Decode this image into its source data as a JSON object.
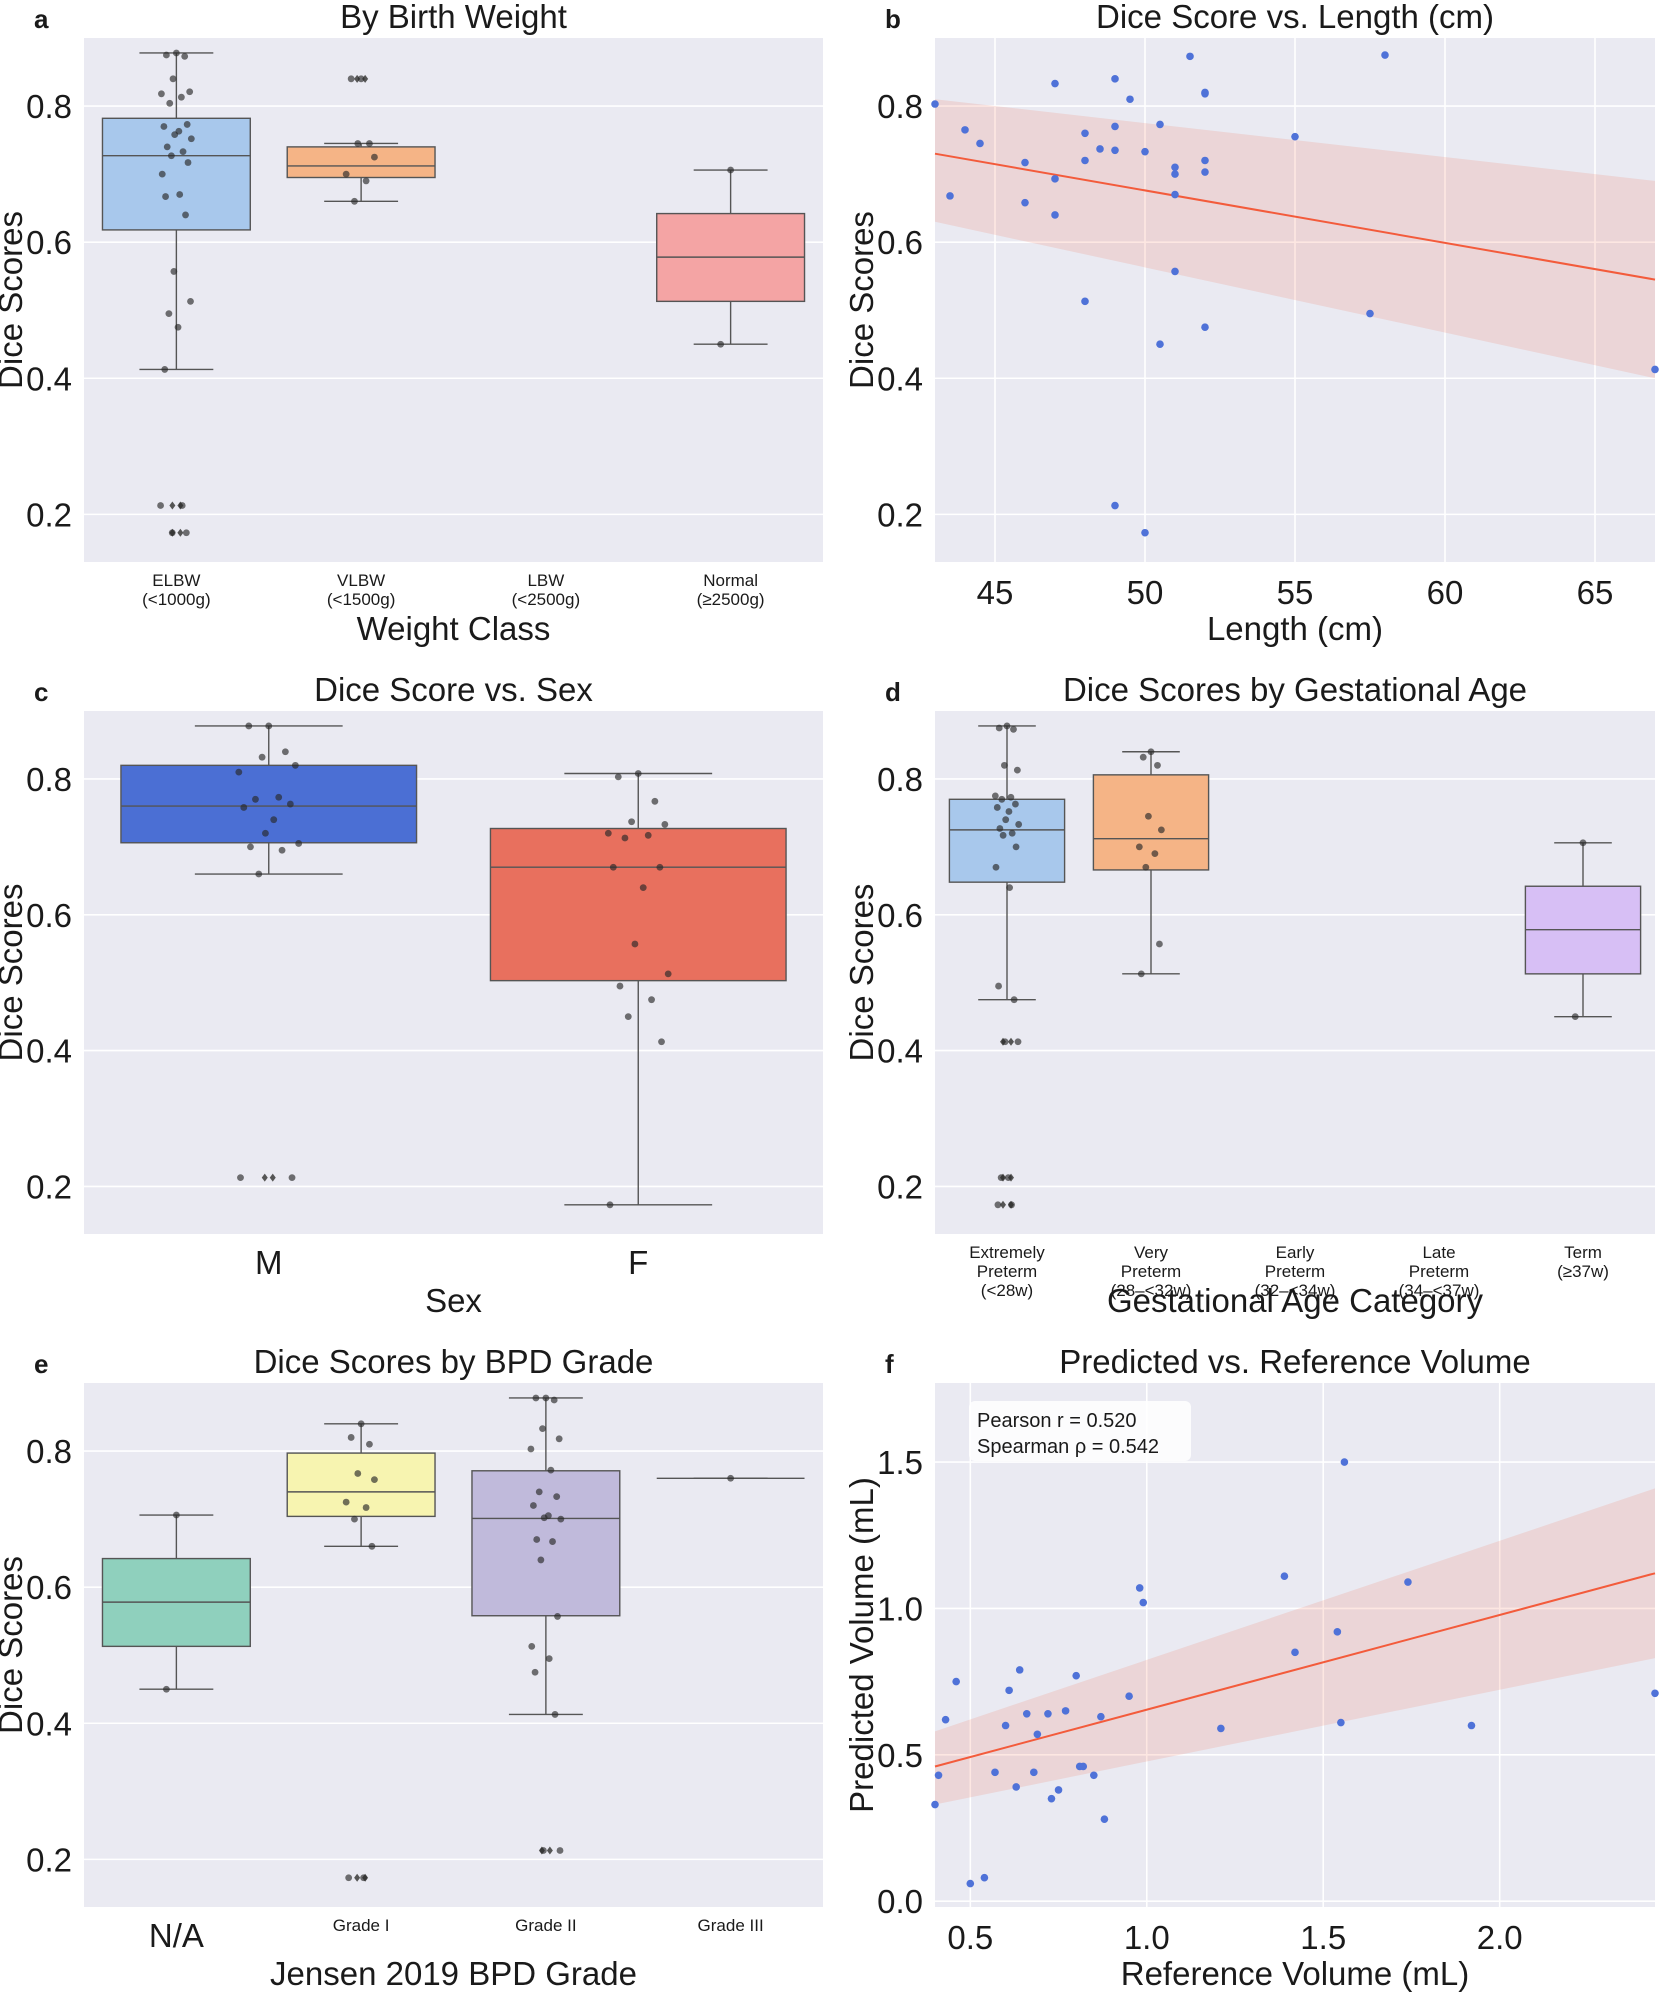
{
  "chart_data": [
    {
      "panel_label": "a",
      "type": "box",
      "title": "By Birth Weight",
      "xlabel": "Weight Class",
      "ylabel": "Dice Scores",
      "categories": [
        "ELBW\n(<1000g)",
        "VLBW\n(<1500g)",
        "LBW\n(<2500g)",
        "Normal\n(≥2500g)"
      ],
      "boxes": [
        {
          "q1": 0.618,
          "median": 0.727,
          "q3": 0.782,
          "whisker_low": 0.413,
          "whisker_high": 0.878,
          "outliers": [
            0.213,
            0.213,
            0.173,
            0.173
          ],
          "color": "#a8c8ec"
        },
        {
          "q1": 0.695,
          "median": 0.712,
          "q3": 0.74,
          "whisker_low": 0.66,
          "whisker_high": 0.745,
          "outliers": [
            0.84,
            0.84
          ],
          "color": "#f5b486"
        },
        null,
        {
          "q1": 0.513,
          "median": 0.578,
          "q3": 0.642,
          "whisker_low": 0.45,
          "whisker_high": 0.706,
          "outliers": [],
          "color": "#f4a4a4"
        }
      ],
      "points": [
        [
          [
            0.878,
            0.875,
            0.873,
            0.84,
            0.821,
            0.818,
            0.813,
            0.804,
            0.773,
            0.77,
            0.763,
            0.758,
            0.752,
            0.74,
            0.733,
            0.727,
            0.717,
            0.7,
            0.67,
            0.667,
            0.64,
            0.557,
            0.513,
            0.495,
            0.475,
            0.413,
            0.213,
            0.213,
            0.173,
            0.173
          ]
        ],
        [
          [
            0.84,
            0.84,
            0.745,
            0.745,
            0.725,
            0.7,
            0.69,
            0.66
          ]
        ],
        [],
        [
          [
            0.706,
            0.45
          ]
        ]
      ],
      "ylim": [
        0.13,
        0.9
      ],
      "yticks": [
        0.2,
        0.4,
        0.6,
        0.8
      ]
    },
    {
      "panel_label": "b",
      "type": "scatter",
      "title": "Dice Score vs. Length (cm)",
      "xlabel": "Length (cm)",
      "ylabel": "Dice Scores",
      "x": [
        43,
        43.5,
        44,
        44.5,
        46,
        46,
        47,
        47,
        47,
        48,
        48,
        48,
        48.5,
        49,
        49,
        49,
        49,
        49.5,
        50,
        50,
        50.5,
        50.5,
        51,
        51,
        51,
        51,
        51.5,
        52,
        52,
        52,
        52,
        52,
        55,
        57.5,
        58,
        67
      ],
      "y": [
        0.803,
        0.668,
        0.765,
        0.745,
        0.717,
        0.658,
        0.833,
        0.693,
        0.64,
        0.76,
        0.72,
        0.513,
        0.737,
        0.77,
        0.213,
        0.84,
        0.735,
        0.81,
        0.733,
        0.173,
        0.773,
        0.45,
        0.71,
        0.7,
        0.67,
        0.557,
        0.873,
        0.82,
        0.818,
        0.72,
        0.703,
        0.475,
        0.755,
        0.495,
        0.875,
        0.413
      ],
      "regression": {
        "x": [
          43,
          67
        ],
        "y": [
          0.73,
          0.545
        ],
        "ci_low": [
          0.63,
          0.4
        ],
        "ci_high": [
          0.81,
          0.69
        ],
        "color": "#f35b3b"
      },
      "xlim": [
        43,
        67
      ],
      "ylim": [
        0.13,
        0.9
      ],
      "xticks": [
        45,
        50,
        55,
        60,
        65
      ],
      "yticks": [
        0.2,
        0.4,
        0.6,
        0.8
      ]
    },
    {
      "panel_label": "c",
      "type": "box",
      "title": "Dice Score vs. Sex",
      "xlabel": "Sex",
      "ylabel": "Dice Scores",
      "categories": [
        "M",
        "F"
      ],
      "boxes": [
        {
          "q1": 0.706,
          "median": 0.76,
          "q3": 0.82,
          "whisker_low": 0.66,
          "whisker_high": 0.878,
          "outliers": [
            0.213,
            0.213
          ],
          "color": "#4b6fd4"
        },
        {
          "q1": 0.503,
          "median": 0.67,
          "q3": 0.727,
          "whisker_low": 0.173,
          "whisker_high": 0.808,
          "outliers": [],
          "color": "#e8705e"
        }
      ],
      "points": [
        [
          [
            0.878,
            0.878,
            0.84,
            0.832,
            0.82,
            0.81,
            0.773,
            0.77,
            0.763,
            0.758,
            0.74,
            0.72,
            0.705,
            0.7,
            0.695,
            0.66,
            0.213,
            0.213
          ]
        ],
        [
          [
            0.808,
            0.803,
            0.767,
            0.737,
            0.733,
            0.72,
            0.717,
            0.713,
            0.67,
            0.67,
            0.64,
            0.557,
            0.513,
            0.495,
            0.475,
            0.45,
            0.413,
            0.173
          ]
        ]
      ],
      "ylim": [
        0.13,
        0.9
      ],
      "yticks": [
        0.2,
        0.4,
        0.6,
        0.8
      ]
    },
    {
      "panel_label": "d",
      "type": "box",
      "title": "Dice Scores by Gestational Age",
      "xlabel": "Gestational Age Category",
      "ylabel": "Dice Scores",
      "categories": [
        "Extremely\nPreterm\n(<28w)",
        "Very\nPreterm\n(28–<32w)",
        "Early\nPreterm\n(32–<34w)",
        "Late\nPreterm\n(34–<37w)",
        "Term\n(≥37w)"
      ],
      "boxes": [
        {
          "q1": 0.648,
          "median": 0.725,
          "q3": 0.77,
          "whisker_low": 0.475,
          "whisker_high": 0.878,
          "outliers": [
            0.413,
            0.413,
            0.213,
            0.213,
            0.173,
            0.173
          ],
          "color": "#a8c8ec"
        },
        {
          "q1": 0.666,
          "median": 0.712,
          "q3": 0.806,
          "whisker_low": 0.513,
          "whisker_high": 0.84,
          "outliers": [],
          "color": "#f5b486"
        },
        null,
        null,
        {
          "q1": 0.513,
          "median": 0.578,
          "q3": 0.642,
          "whisker_low": 0.45,
          "whisker_high": 0.706,
          "outliers": [],
          "color": "#d7bff5"
        }
      ],
      "points": [
        [
          [
            0.878,
            0.875,
            0.873,
            0.82,
            0.813,
            0.775,
            0.773,
            0.77,
            0.763,
            0.758,
            0.752,
            0.74,
            0.733,
            0.727,
            0.72,
            0.717,
            0.7,
            0.67,
            0.64,
            0.495,
            0.475,
            0.413,
            0.413,
            0.213,
            0.213,
            0.173,
            0.173
          ]
        ],
        [
          [
            0.84,
            0.832,
            0.82,
            0.745,
            0.725,
            0.7,
            0.69,
            0.67,
            0.557,
            0.513
          ]
        ],
        [],
        [],
        [
          [
            0.706,
            0.45
          ]
        ]
      ],
      "ylim": [
        0.13,
        0.9
      ],
      "yticks": [
        0.2,
        0.4,
        0.6,
        0.8
      ]
    },
    {
      "panel_label": "e",
      "type": "box",
      "title": "Dice Scores by BPD Grade",
      "xlabel": "Jensen 2019 BPD Grade",
      "ylabel": "Dice Scores",
      "categories": [
        "N/A",
        "Grade I",
        "Grade II",
        "Grade III"
      ],
      "boxes": [
        {
          "q1": 0.513,
          "median": 0.578,
          "q3": 0.642,
          "whisker_low": 0.45,
          "whisker_high": 0.706,
          "outliers": [],
          "color": "#8fd0bd"
        },
        {
          "q1": 0.704,
          "median": 0.74,
          "q3": 0.797,
          "whisker_low": 0.66,
          "whisker_high": 0.84,
          "outliers": [
            0.173,
            0.173
          ],
          "color": "#f7f4b0"
        },
        {
          "q1": 0.558,
          "median": 0.701,
          "q3": 0.771,
          "whisker_low": 0.413,
          "whisker_high": 0.878,
          "outliers": [
            0.213,
            0.213
          ],
          "color": "#c0badb"
        },
        {
          "q1": 0.76,
          "median": 0.76,
          "q3": 0.76,
          "whisker_low": 0.76,
          "whisker_high": 0.76,
          "outliers": [],
          "color": "#f4a4a4"
        }
      ],
      "points": [
        [
          [
            0.706,
            0.45
          ]
        ],
        [
          [
            0.84,
            0.82,
            0.81,
            0.767,
            0.758,
            0.725,
            0.717,
            0.7,
            0.66,
            0.173,
            0.173
          ]
        ],
        [
          [
            0.878,
            0.878,
            0.875,
            0.833,
            0.818,
            0.803,
            0.772,
            0.74,
            0.733,
            0.72,
            0.705,
            0.702,
            0.7,
            0.67,
            0.667,
            0.64,
            0.557,
            0.513,
            0.495,
            0.475,
            0.413,
            0.213,
            0.213
          ]
        ],
        [
          [
            0.76
          ]
        ]
      ],
      "ylim": [
        0.13,
        0.9
      ],
      "yticks": [
        0.2,
        0.4,
        0.6,
        0.8
      ]
    },
    {
      "panel_label": "f",
      "type": "scatter",
      "title": "Predicted vs. Reference Volume",
      "xlabel": "Reference Volume (mL)",
      "ylabel": "Predicted Volume (mL)",
      "annotation": [
        "Pearson r = 0.520",
        "Spearman ρ = 0.542"
      ],
      "x": [
        0.4,
        0.41,
        0.43,
        0.46,
        0.5,
        0.54,
        0.57,
        0.6,
        0.61,
        0.63,
        0.64,
        0.66,
        0.68,
        0.69,
        0.72,
        0.73,
        0.75,
        0.77,
        0.8,
        0.81,
        0.82,
        0.85,
        0.87,
        0.88,
        0.95,
        0.98,
        0.99,
        1.21,
        1.39,
        1.42,
        1.54,
        1.55,
        1.56,
        1.74,
        1.92,
        2.44
      ],
      "y": [
        0.33,
        0.43,
        0.62,
        0.75,
        0.06,
        0.08,
        0.44,
        0.6,
        0.72,
        0.39,
        0.79,
        0.64,
        0.44,
        0.57,
        0.64,
        0.35,
        0.38,
        0.65,
        0.77,
        0.46,
        0.46,
        0.43,
        0.63,
        0.28,
        0.7,
        1.07,
        1.02,
        0.59,
        1.11,
        0.85,
        0.92,
        0.61,
        1.5,
        1.09,
        0.6,
        0.71
      ],
      "regression": {
        "x": [
          0.4,
          2.44
        ],
        "y": [
          0.46,
          1.12
        ],
        "ci_low": [
          0.33,
          0.83
        ],
        "ci_high": [
          0.58,
          1.41
        ],
        "color": "#f35b3b"
      },
      "xlim": [
        0.4,
        2.44
      ],
      "ylim": [
        -0.02,
        1.77
      ],
      "xticks": [
        0.5,
        1.0,
        1.5,
        2.0
      ],
      "yticks": [
        0.0,
        0.5,
        1.0,
        1.5
      ],
      "tick_decimals": 1
    }
  ]
}
